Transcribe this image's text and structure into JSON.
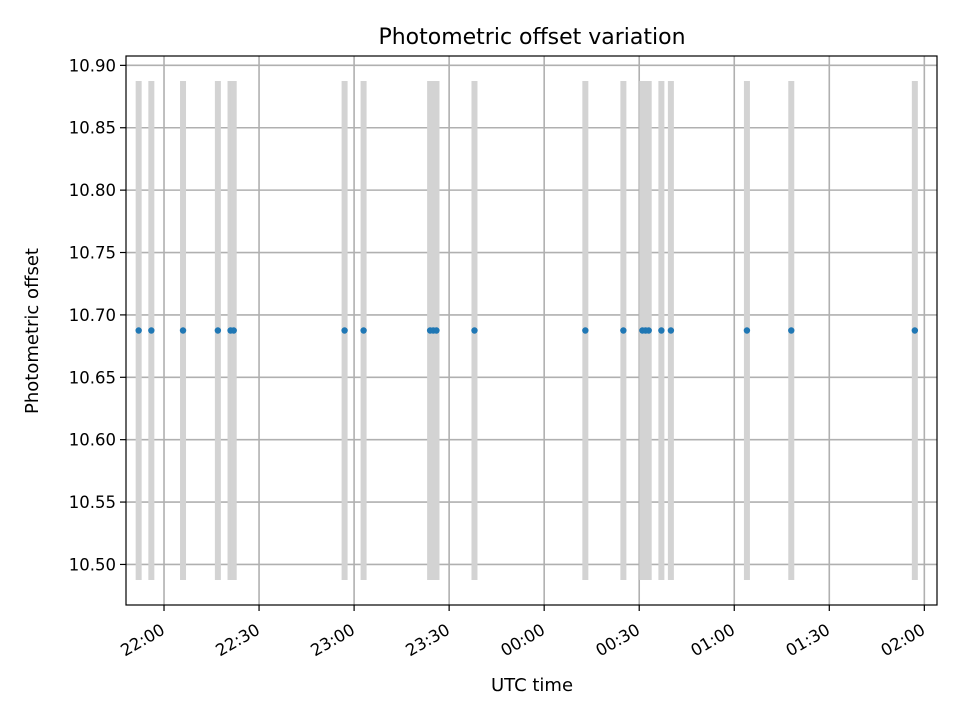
{
  "chart_data": {
    "type": "scatter",
    "title": "Photometric offset variation",
    "xlabel": "UTC time",
    "ylabel": "Photometric offset",
    "x_axis": {
      "kind": "time",
      "range": [
        "21:48",
        "02:04"
      ],
      "ticks": [
        "22:00",
        "22:30",
        "23:00",
        "23:30",
        "00:00",
        "00:30",
        "01:00",
        "01:30",
        "02:00"
      ]
    },
    "y_axis": {
      "range": [
        10.4675,
        10.9075
      ],
      "ticks": [
        "10.50",
        "10.55",
        "10.60",
        "10.65",
        "10.70",
        "10.75",
        "10.80",
        "10.85",
        "10.90"
      ]
    },
    "grid": true,
    "series": [
      {
        "x": [
          "21:52",
          "21:56",
          "22:06",
          "22:17",
          "22:21",
          "22:22",
          "22:57",
          "23:03",
          "23:24",
          "23:25",
          "23:26",
          "23:38",
          "00:13",
          "00:25",
          "00:31",
          "00:32",
          "00:33",
          "00:37",
          "00:40",
          "01:04",
          "01:18",
          "01:57"
        ],
        "y": [
          10.6875,
          10.6875,
          10.6875,
          10.6875,
          10.6875,
          10.6875,
          10.6875,
          10.6875,
          10.6875,
          10.6875,
          10.6875,
          10.6875,
          10.6875,
          10.6875,
          10.6875,
          10.6875,
          10.6875,
          10.6875,
          10.6875,
          10.6875,
          10.6875,
          10.6875
        ],
        "yerr": [
          0.2,
          0.2,
          0.2,
          0.2,
          0.2,
          0.2,
          0.2,
          0.2,
          0.2,
          0.2,
          0.2,
          0.2,
          0.2,
          0.2,
          0.2,
          0.2,
          0.2,
          0.2,
          0.2,
          0.2,
          0.2,
          0.2
        ]
      }
    ],
    "colors": {
      "points": "#1f77b4",
      "error_bars": "#d3d3d3",
      "grid": "#b0b0b0",
      "axes": "#000000"
    }
  }
}
